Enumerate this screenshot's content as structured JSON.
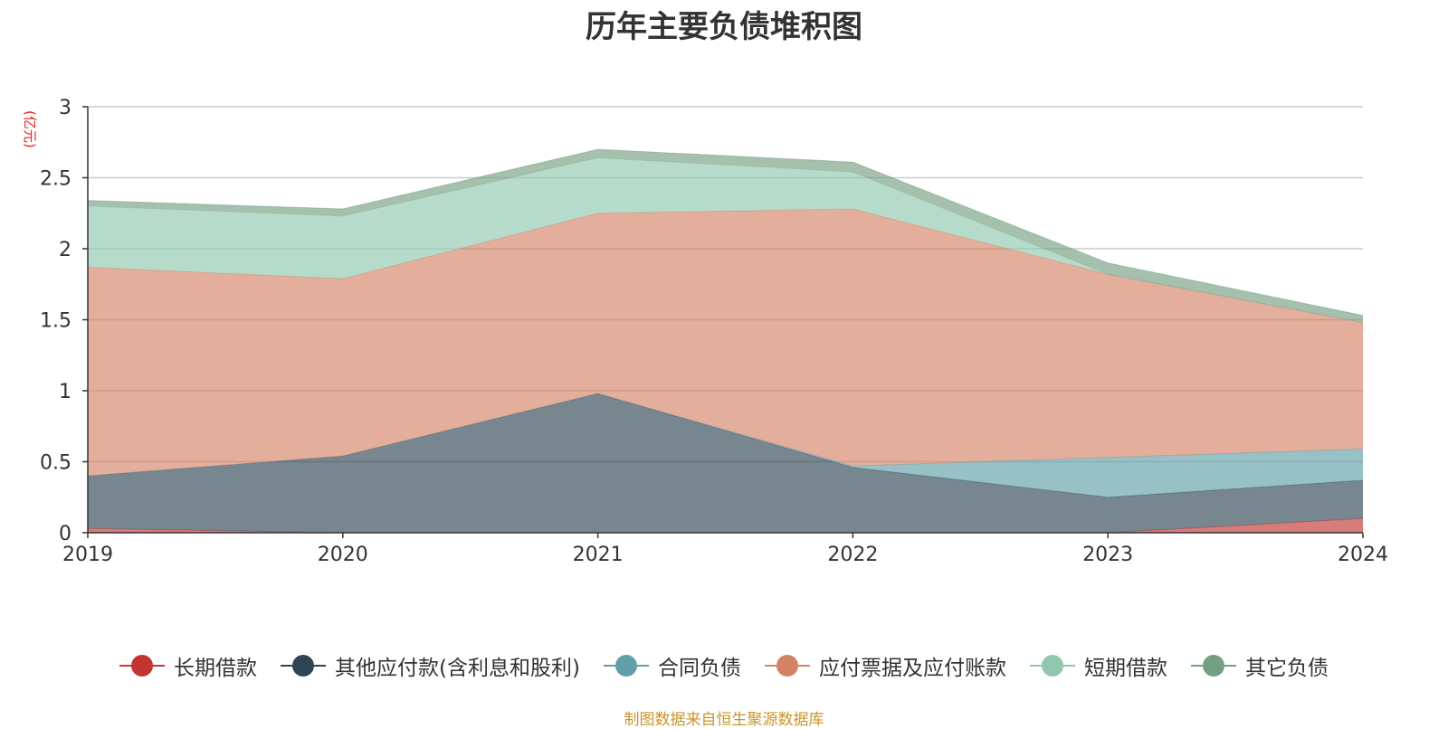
{
  "chart_data": {
    "type": "area",
    "stacked": true,
    "title": "历年主要负债堆积图",
    "unit_label": "(亿元)",
    "x": [
      "2019",
      "2020",
      "2021",
      "2022",
      "2023",
      "2024"
    ],
    "ylim": [
      0,
      3
    ],
    "yticks": [
      "0",
      "0.5",
      "1",
      "1.5",
      "2",
      "2.5",
      "3"
    ],
    "grid": true,
    "legend_position": "bottom",
    "series": [
      {
        "name": "长期借款",
        "color": "#c23531",
        "values": [
          0.03,
          0.0,
          0.0,
          0.0,
          0.0,
          0.1
        ]
      },
      {
        "name": "其他应付款(含利息和股利)",
        "color": "#2f4554",
        "values": [
          0.37,
          0.54,
          0.98,
          0.46,
          0.25,
          0.27
        ]
      },
      {
        "name": "合同负债",
        "color": "#61a0a8",
        "values": [
          0.0,
          0.0,
          0.0,
          0.01,
          0.28,
          0.22
        ]
      },
      {
        "name": "应付票据及应付账款",
        "color": "#d48265",
        "values": [
          1.47,
          1.25,
          1.27,
          1.81,
          1.29,
          0.89
        ]
      },
      {
        "name": "短期借款",
        "color": "#91c7ae",
        "values": [
          0.43,
          0.44,
          0.39,
          0.26,
          0.0,
          0.0
        ]
      },
      {
        "name": "其它负债",
        "color": "#749f83",
        "values": [
          0.04,
          0.05,
          0.06,
          0.07,
          0.08,
          0.05
        ]
      }
    ],
    "source_note": "制图数据来自恒生聚源数据库"
  }
}
